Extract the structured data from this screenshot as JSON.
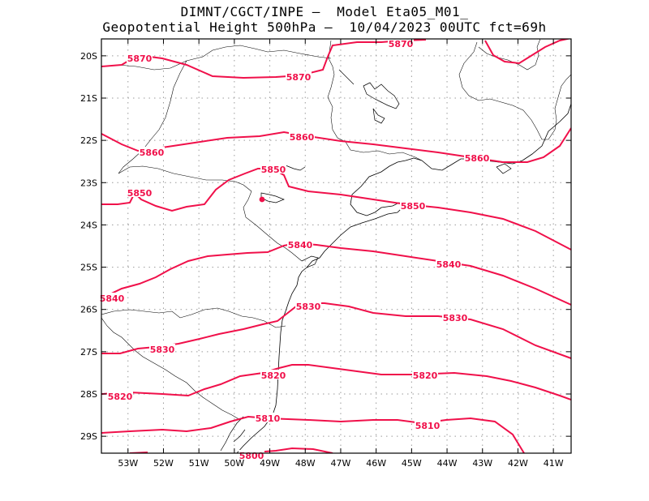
{
  "title": {
    "line1": "DIMNT/CGCT/INPE –  Model Eta05_M01_",
    "line2": "Geopotential Height 500hPa –  10/04/2023 00UTC fct=69h"
  },
  "map": {
    "lat_range": [
      -29.4,
      -19.6
    ],
    "lon_range": [
      -53.75,
      -40.5
    ],
    "lat_ticks": [
      {
        "value": -20,
        "label": "20S"
      },
      {
        "value": -21,
        "label": "21S"
      },
      {
        "value": -22,
        "label": "22S"
      },
      {
        "value": -23,
        "label": "23S"
      },
      {
        "value": -24,
        "label": "24S"
      },
      {
        "value": -25,
        "label": "25S"
      },
      {
        "value": -26,
        "label": "26S"
      },
      {
        "value": -27,
        "label": "27S"
      },
      {
        "value": -28,
        "label": "28S"
      },
      {
        "value": -29,
        "label": "29S"
      }
    ],
    "lon_ticks": [
      {
        "value": -53,
        "label": "53W"
      },
      {
        "value": -52,
        "label": "52W"
      },
      {
        "value": -51,
        "label": "51W"
      },
      {
        "value": -50,
        "label": "50W"
      },
      {
        "value": -49,
        "label": "49W"
      },
      {
        "value": -48,
        "label": "48W"
      },
      {
        "value": -47,
        "label": "47W"
      },
      {
        "value": -46,
        "label": "46W"
      },
      {
        "value": -45,
        "label": "45W"
      },
      {
        "value": -44,
        "label": "44W"
      },
      {
        "value": -43,
        "label": "43W"
      },
      {
        "value": -42,
        "label": "42W"
      },
      {
        "value": -41,
        "label": "41W"
      }
    ],
    "contour_color": "#f0104a",
    "contours": [
      {
        "value": 5870,
        "labels": [
          "5870",
          "5870",
          "5870"
        ]
      },
      {
        "value": 5860,
        "labels": [
          "5860",
          "5860",
          "5860"
        ]
      },
      {
        "value": 5850,
        "labels": [
          "5850",
          "5850",
          "5850"
        ]
      },
      {
        "value": 5840,
        "labels": [
          "5840",
          "5840",
          "5840"
        ]
      },
      {
        "value": 5830,
        "labels": [
          "5830",
          "5830",
          "5830"
        ]
      },
      {
        "value": 5820,
        "labels": [
          "5820",
          "5820",
          "5820"
        ]
      },
      {
        "value": 5810,
        "labels": [
          "5810",
          "5810"
        ]
      },
      {
        "value": 5800,
        "labels": [
          "5800"
        ]
      }
    ]
  }
}
